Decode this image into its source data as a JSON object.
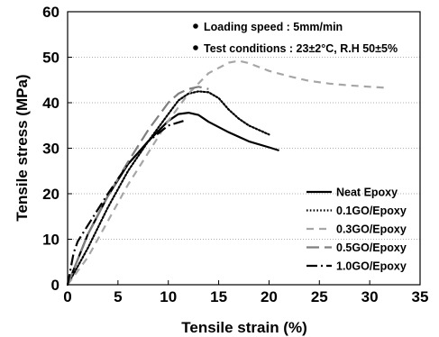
{
  "chart_data": {
    "type": "line",
    "xlabel": "Tensile strain (%)",
    "ylabel": "Tensile stress (MPa)",
    "xlim": [
      0,
      35
    ],
    "ylim": [
      0,
      60
    ],
    "xticks": [
      "0",
      "5",
      "10",
      "15",
      "20",
      "25",
      "30",
      "35"
    ],
    "yticks": [
      "0",
      "10",
      "20",
      "30",
      "40",
      "50",
      "60"
    ],
    "grid": "horizontal dotted",
    "legend_position": "lower-right",
    "annotations": [
      "Loading speed : 5mm/min",
      "Test conditions : 23±2°C, R.H 50±5%"
    ],
    "series": [
      {
        "name": "Neat Epoxy",
        "color": "#000000",
        "style": "solid",
        "x": [
          0,
          2,
          4,
          6,
          8,
          10,
          11,
          12,
          13,
          14,
          16,
          18,
          20,
          21
        ],
        "y": [
          0,
          11,
          19.5,
          26.5,
          31.5,
          36,
          37.5,
          37.8,
          37.3,
          35.8,
          33.5,
          31.5,
          30.2,
          29.5
        ]
      },
      {
        "name": "0.1GO/Epoxy",
        "color": "#000000",
        "style": "dotted",
        "x": [
          0,
          2,
          4,
          6,
          8,
          10,
          11,
          12,
          13,
          14,
          15,
          16,
          17,
          18,
          19,
          20
        ],
        "y": [
          0,
          8,
          17,
          25,
          31.5,
          37.5,
          40.5,
          42,
          42.5,
          42.3,
          41,
          38.5,
          36.5,
          35,
          34,
          33
        ]
      },
      {
        "name": "0.3GO/Epoxy",
        "color": "#a6a6a6",
        "style": "dashed",
        "x": [
          0,
          2,
          4,
          6,
          8,
          10,
          12,
          14,
          16,
          17,
          18,
          20,
          22,
          24,
          26,
          28,
          30,
          31.5
        ],
        "y": [
          0,
          6,
          14,
          22,
          29,
          36,
          42,
          46.5,
          48.8,
          49.2,
          48.7,
          47,
          45.8,
          44.8,
          44.2,
          43.8,
          43.5,
          43.3
        ]
      },
      {
        "name": "0.5GO/Epoxy",
        "color": "#7f7f7f",
        "style": "longdash",
        "x": [
          0,
          2,
          4,
          6,
          8,
          10,
          11,
          12,
          13,
          14
        ],
        "y": [
          0,
          11,
          19.5,
          27,
          34,
          40,
          42,
          43,
          43.5,
          43
        ]
      },
      {
        "name": "1.0GO/Epoxy",
        "color": "#000000",
        "style": "dashdot",
        "x": [
          0,
          0.6,
          1,
          2,
          4,
          6,
          8,
          10,
          11.5
        ],
        "y": [
          0,
          7,
          9.5,
          13,
          20,
          26.5,
          31.5,
          35,
          36
        ]
      }
    ]
  }
}
